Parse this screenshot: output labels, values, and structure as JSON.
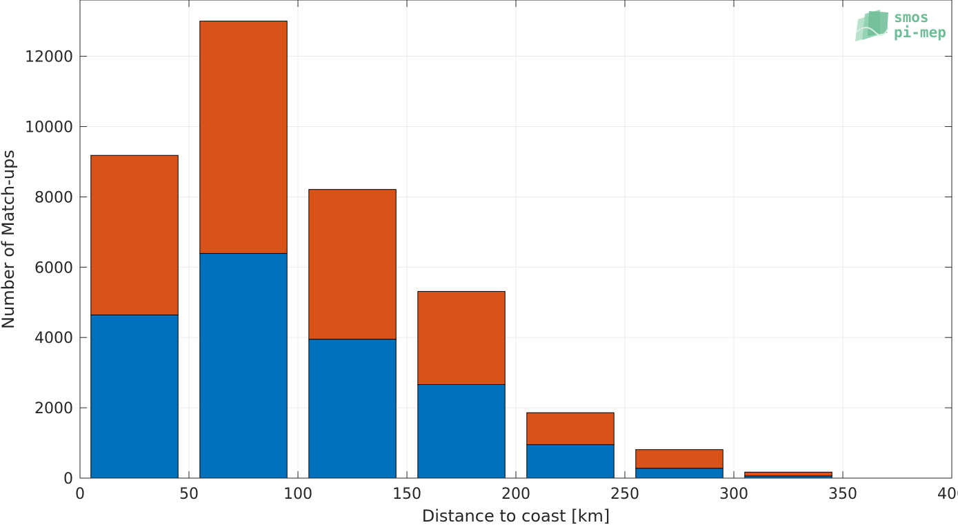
{
  "chart_data": {
    "type": "bar",
    "stacked": true,
    "categories": [
      25,
      75,
      125,
      175,
      225,
      275,
      325
    ],
    "series": [
      {
        "values": [
          4640,
          6390,
          3950,
          2660,
          950,
          280,
          60
        ],
        "color": "#0072bd"
      },
      {
        "values": [
          4540,
          6610,
          4260,
          2650,
          910,
          530,
          110
        ],
        "color": "#d95319"
      }
    ],
    "bar_width": 40,
    "title": "",
    "xlabel": "Distance to coast [km]",
    "ylabel": "Number of Match-ups",
    "xlim": [
      0,
      400
    ],
    "ylim": [
      0,
      13600
    ],
    "xticks": [
      0,
      50,
      100,
      150,
      200,
      250,
      300,
      350,
      400
    ],
    "yticks": [
      0,
      2000,
      4000,
      6000,
      8000,
      10000,
      12000
    ],
    "grid": true
  },
  "logo": {
    "line1": "smos",
    "line2": "pi-mep"
  }
}
